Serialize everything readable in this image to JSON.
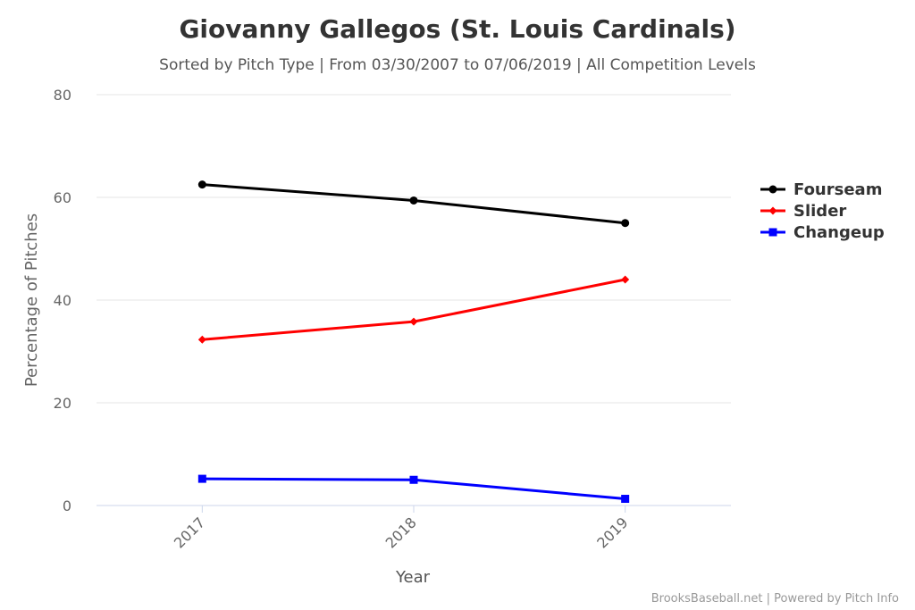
{
  "chart_data": {
    "type": "line",
    "title": "Giovanny Gallegos (St. Louis Cardinals)",
    "subtitle": "Sorted by Pitch Type | From 03/30/2007 to 07/06/2019 | All Competition Levels",
    "xlabel": "Year",
    "ylabel": "Percentage of Pitches",
    "categories": [
      "2017",
      "2018",
      "2019"
    ],
    "ylim": [
      0,
      80
    ],
    "yticks": [
      "0",
      "20",
      "40",
      "60",
      "80"
    ],
    "grid": true,
    "legend_position": "right",
    "series": [
      {
        "name": "Fourseam",
        "color": "#000000",
        "marker": "circle",
        "values": [
          62.5,
          59.4,
          55.0
        ]
      },
      {
        "name": "Slider",
        "color": "#ff0000",
        "marker": "diamond",
        "values": [
          32.3,
          35.8,
          44.0
        ]
      },
      {
        "name": "Changeup",
        "color": "#0000ff",
        "marker": "square",
        "values": [
          5.2,
          5.0,
          1.3
        ]
      }
    ]
  },
  "credits": "BrooksBaseball.net | Powered by Pitch Info"
}
